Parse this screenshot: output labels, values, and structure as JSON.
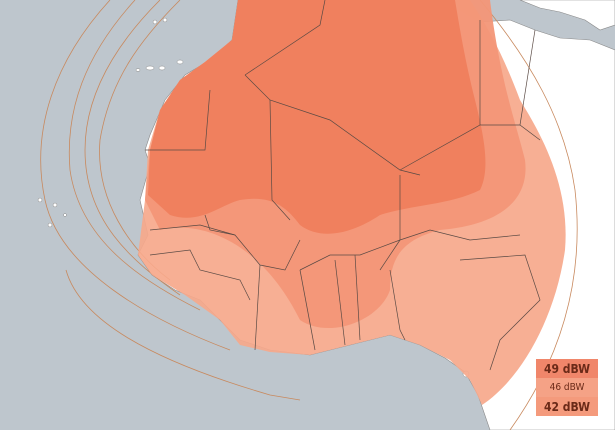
{
  "map": {
    "colors": {
      "sea": "#bec6cd",
      "land": "#ffffff",
      "zone_49": "#f0805e",
      "zone_46": "#f39677",
      "zone_42": "#f6a88b",
      "contour": "#c8895e",
      "border": "#5a4a44"
    }
  },
  "legend": {
    "items": [
      {
        "label": "49 dBW",
        "color": "#f0866a"
      },
      {
        "label": "46 dBW",
        "color": "#f5a286"
      },
      {
        "label": "42 dBW",
        "color": "#f49a7c"
      }
    ]
  }
}
